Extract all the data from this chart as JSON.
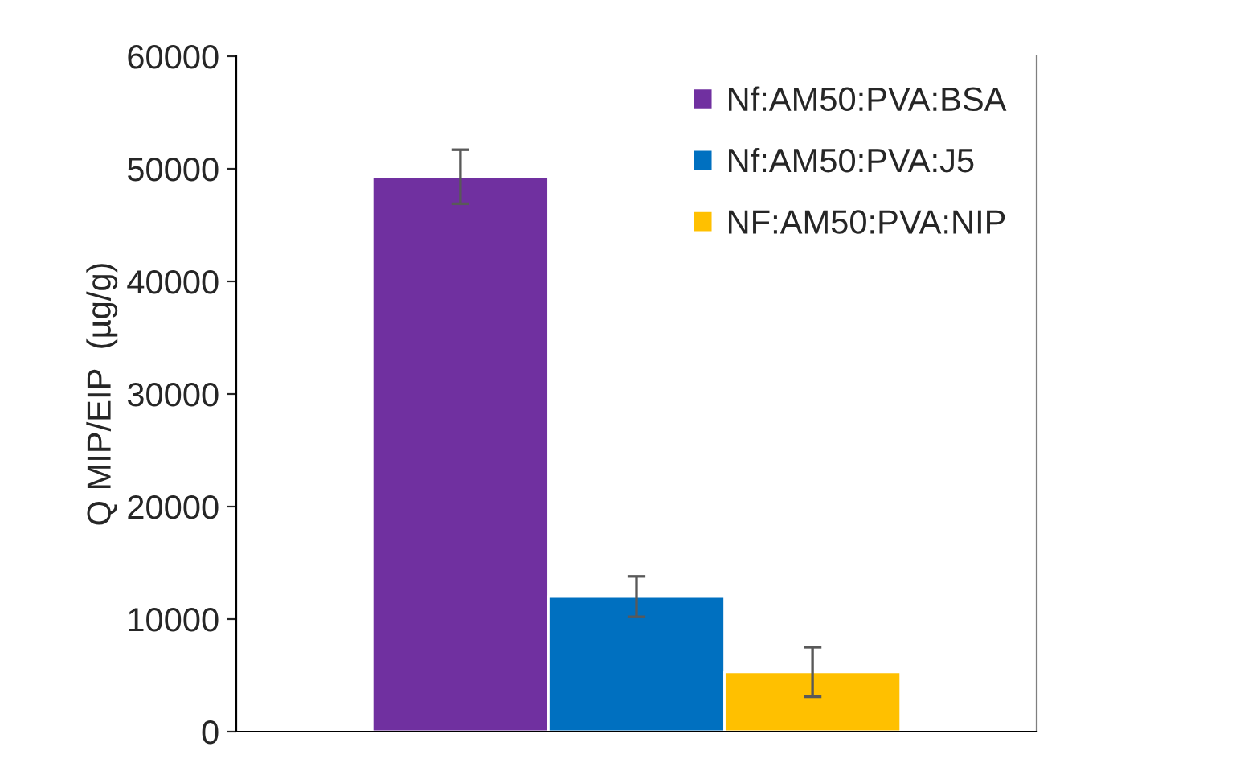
{
  "chart_data": {
    "type": "bar",
    "ylabel": "Q MIP/EIP  (µg/g)",
    "categories": [
      null
    ],
    "series": [
      {
        "name": "Nf:AM50:PVA:BSA",
        "color": "#7030a0",
        "values": [
          49300
        ],
        "errors": [
          2400
        ]
      },
      {
        "name": "Nf:AM50:PVA:J5",
        "color": "#0070c0",
        "values": [
          12000
        ],
        "errors": [
          1800
        ]
      },
      {
        "name": "NF:AM50:PVA:NIP",
        "color": "#ffc000",
        "values": [
          5300
        ],
        "errors": [
          2200
        ]
      }
    ],
    "ylim": [
      0,
      60000
    ],
    "yticks": [
      0,
      10000,
      20000,
      30000,
      40000,
      50000,
      60000
    ],
    "grid": false,
    "legend": "top right"
  }
}
